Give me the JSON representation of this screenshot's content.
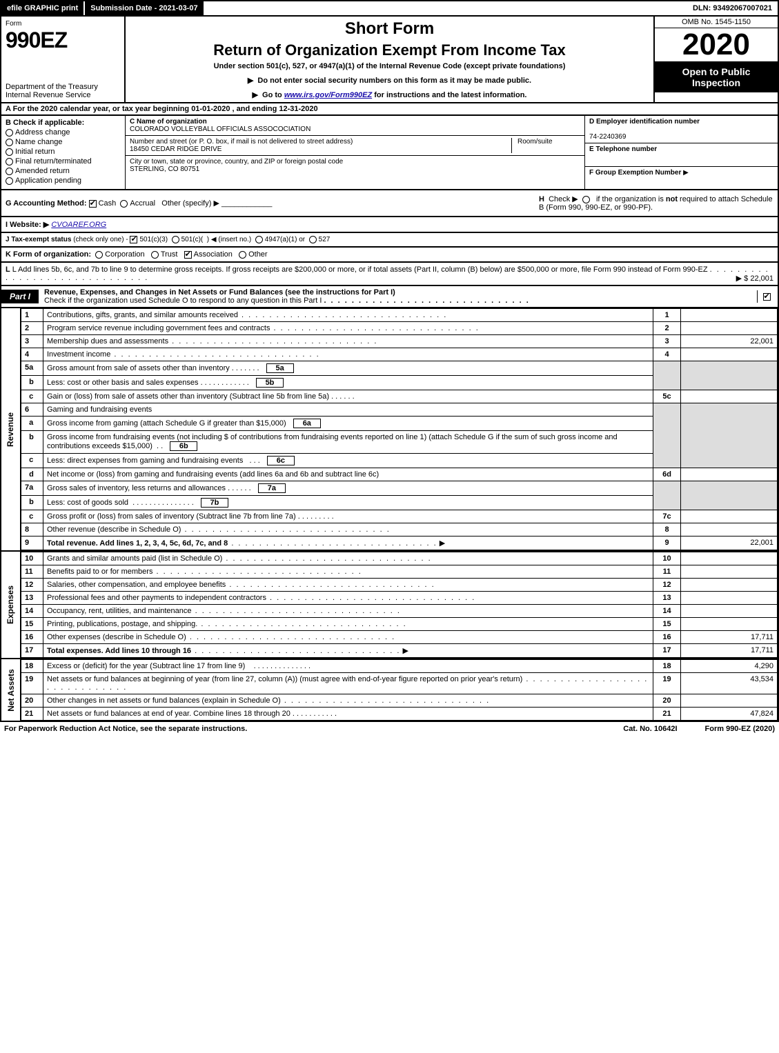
{
  "top": {
    "efile": "efile GRAPHIC print",
    "submission": "Submission Date - 2021-03-07",
    "dln": "DLN: 93492067007021"
  },
  "header": {
    "form_label": "Form",
    "form_no": "990EZ",
    "dept": "Department of the Treasury\nInternal Revenue Service",
    "short": "Short Form",
    "ret": "Return of Organization Exempt From Income Tax",
    "under": "Under section 501(c), 527, or 4947(a)(1) of the Internal Revenue Code (except private foundations)",
    "warn": "Do not enter social security numbers on this form as it may be made public.",
    "go": "Go to ",
    "go_url": "www.irs.gov/Form990EZ",
    "go_tail": " for instructions and the latest information.",
    "omb": "OMB No. 1545-1150",
    "year": "2020",
    "inspect": "Open to Public Inspection"
  },
  "sec_a": "A  For the 2020 calendar year, or tax year beginning 01-01-2020 , and ending 12-31-2020",
  "b": {
    "title": "B  Check if applicable:",
    "opts": [
      "Address change",
      "Name change",
      "Initial return",
      "Final return/terminated",
      "Amended return",
      "Application pending"
    ]
  },
  "c": {
    "name_lbl": "C Name of organization",
    "name": "COLORADO VOLLEYBALL OFFICIALS ASSOCOCIATION",
    "street_lbl": "Number and street (or P. O. box, if mail is not delivered to street address)",
    "street": "18450 CEDAR RIDGE DRIVE",
    "room_lbl": "Room/suite",
    "city_lbl": "City or town, state or province, country, and ZIP or foreign postal code",
    "city": "STERLING, CO  80751"
  },
  "d": {
    "lbl": "D Employer identification number",
    "val": "74-2240369"
  },
  "e": {
    "lbl": "E Telephone number",
    "val": ""
  },
  "f": {
    "lbl": "F Group Exemption Number",
    "tri": "▶"
  },
  "g": {
    "lbl": "G Accounting Method:",
    "cash": "Cash",
    "accrual": "Accrual",
    "other": "Other (specify) ▶"
  },
  "h": {
    "txt": "H  Check ▶      if the organization is not required to attach Schedule B (Form 990, 990-EZ, or 990-PF)."
  },
  "i": {
    "lbl": "I Website: ▶",
    "val": "CVOAREF.ORG"
  },
  "j": {
    "lbl": "J Tax-exempt status",
    "note": "(check only one) -",
    "opts": "501(c)(3)    501(c)(  ) ◀ (insert no.)    4947(a)(1) or    527"
  },
  "k": {
    "lbl": "K Form of organization:",
    "opts": "Corporation    Trust    Association    Other"
  },
  "l": {
    "txt": "L Add lines 5b, 6c, and 7b to line 9 to determine gross receipts. If gross receipts are $200,000 or more, or if total assets (Part II, column (B) below) are $500,000 or more, file Form 990 instead of Form 990-EZ",
    "amt": "▶ $ 22,001"
  },
  "part1": {
    "lbl": "Part I",
    "title": "Revenue, Expenses, and Changes in Net Assets or Fund Balances (see the instructions for Part I)",
    "sub": "Check if the organization used Schedule O to respond to any question in this Part I"
  },
  "lines": {
    "1": {
      "desc": "Contributions, gifts, grants, and similar amounts received",
      "amt": ""
    },
    "2": {
      "desc": "Program service revenue including government fees and contracts",
      "amt": ""
    },
    "3": {
      "desc": "Membership dues and assessments",
      "amt": "22,001"
    },
    "4": {
      "desc": "Investment income",
      "amt": ""
    },
    "5a": {
      "desc": "Gross amount from sale of assets other than inventory"
    },
    "5b": {
      "desc": "Less: cost or other basis and sales expenses"
    },
    "5c": {
      "desc": "Gain or (loss) from sale of assets other than inventory (Subtract line 5b from line 5a)",
      "amt": ""
    },
    "6": {
      "desc": "Gaming and fundraising events"
    },
    "6a": {
      "desc": "Gross income from gaming (attach Schedule G if greater than $15,000)"
    },
    "6b": {
      "desc": "Gross income from fundraising events (not including $                  of contributions from fundraising events reported on line 1) (attach Schedule G if the sum of such gross income and contributions exceeds $15,000)"
    },
    "6c": {
      "desc": "Less: direct expenses from gaming and fundraising events"
    },
    "6d": {
      "desc": "Net income or (loss) from gaming and fundraising events (add lines 6a and 6b and subtract line 6c)",
      "amt": ""
    },
    "7a": {
      "desc": "Gross sales of inventory, less returns and allowances"
    },
    "7b": {
      "desc": "Less: cost of goods sold"
    },
    "7c": {
      "desc": "Gross profit or (loss) from sales of inventory (Subtract line 7b from line 7a)",
      "amt": ""
    },
    "8": {
      "desc": "Other revenue (describe in Schedule O)",
      "amt": ""
    },
    "9": {
      "desc": "Total revenue. Add lines 1, 2, 3, 4, 5c, 6d, 7c, and 8",
      "amt": "22,001"
    },
    "10": {
      "desc": "Grants and similar amounts paid (list in Schedule O)",
      "amt": ""
    },
    "11": {
      "desc": "Benefits paid to or for members",
      "amt": ""
    },
    "12": {
      "desc": "Salaries, other compensation, and employee benefits",
      "amt": ""
    },
    "13": {
      "desc": "Professional fees and other payments to independent contractors",
      "amt": ""
    },
    "14": {
      "desc": "Occupancy, rent, utilities, and maintenance",
      "amt": ""
    },
    "15": {
      "desc": "Printing, publications, postage, and shipping.",
      "amt": ""
    },
    "16": {
      "desc": "Other expenses (describe in Schedule O)",
      "amt": "17,711"
    },
    "17": {
      "desc": "Total expenses. Add lines 10 through 16",
      "amt": "17,711"
    },
    "18": {
      "desc": "Excess or (deficit) for the year (Subtract line 17 from line 9)",
      "amt": "4,290"
    },
    "19": {
      "desc": "Net assets or fund balances at beginning of year (from line 27, column (A)) (must agree with end-of-year figure reported on prior year's return)",
      "amt": "43,534"
    },
    "20": {
      "desc": "Other changes in net assets or fund balances (explain in Schedule O)",
      "amt": ""
    },
    "21": {
      "desc": "Net assets or fund balances at end of year. Combine lines 18 through 20",
      "amt": "47,824"
    }
  },
  "side": {
    "rev": "Revenue",
    "exp": "Expenses",
    "net": "Net Assets"
  },
  "footer": {
    "left": "For Paperwork Reduction Act Notice, see the separate instructions.",
    "mid": "Cat. No. 10642I",
    "right": "Form 990-EZ (2020)"
  },
  "style": {
    "black": "#000000",
    "white": "#ffffff",
    "shade": "#dddddd",
    "link": "#1a0dab"
  }
}
